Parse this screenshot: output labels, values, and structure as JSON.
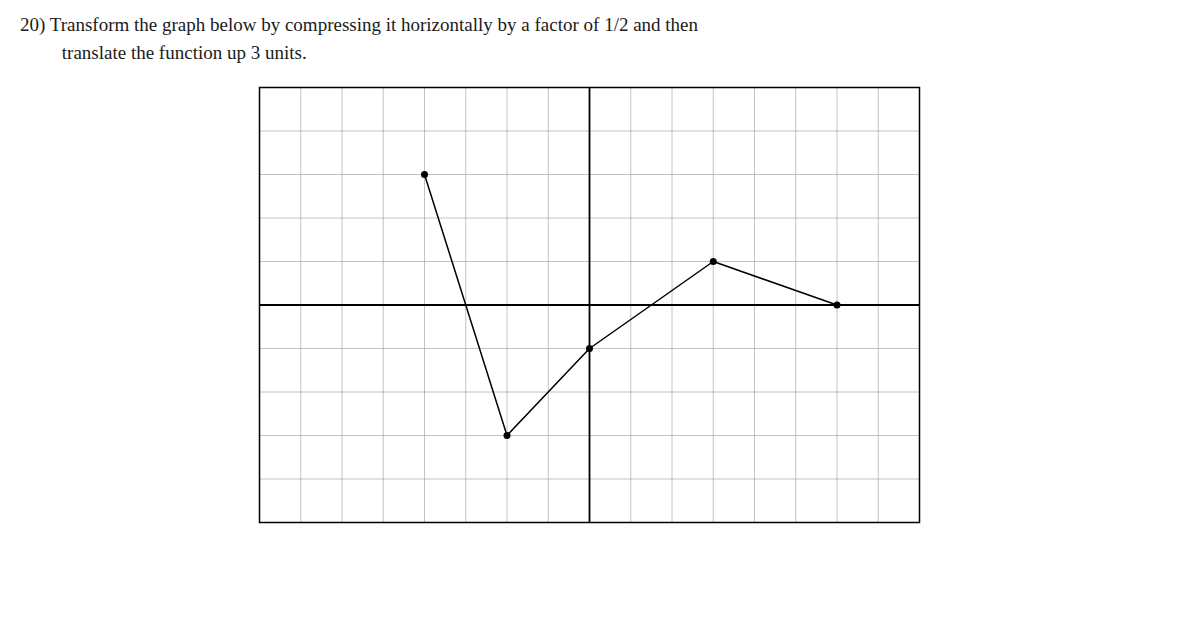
{
  "chart_data": {
    "type": "line",
    "title": "20)  Transform the graph below by compressing it horizontally by a factor of 1/2 and then",
    "subtitle": "translate the function up 3 units.",
    "x": [
      -4,
      -2,
      0,
      3,
      6
    ],
    "values": [
      3,
      -3,
      -1,
      1,
      0
    ],
    "color": "#000000",
    "marker": "o",
    "xlim": [
      -8,
      8
    ],
    "ylim": [
      -5,
      5
    ],
    "xticks": [
      -8,
      -7,
      -6,
      -5,
      -4,
      -3,
      -2,
      -1,
      0,
      1,
      2,
      3,
      4,
      5,
      6,
      7,
      8
    ],
    "yticks": [
      -5,
      -4,
      -3,
      -2,
      -1,
      0,
      1,
      2,
      3,
      4,
      5
    ],
    "grid": true,
    "tick_labels": false
  }
}
